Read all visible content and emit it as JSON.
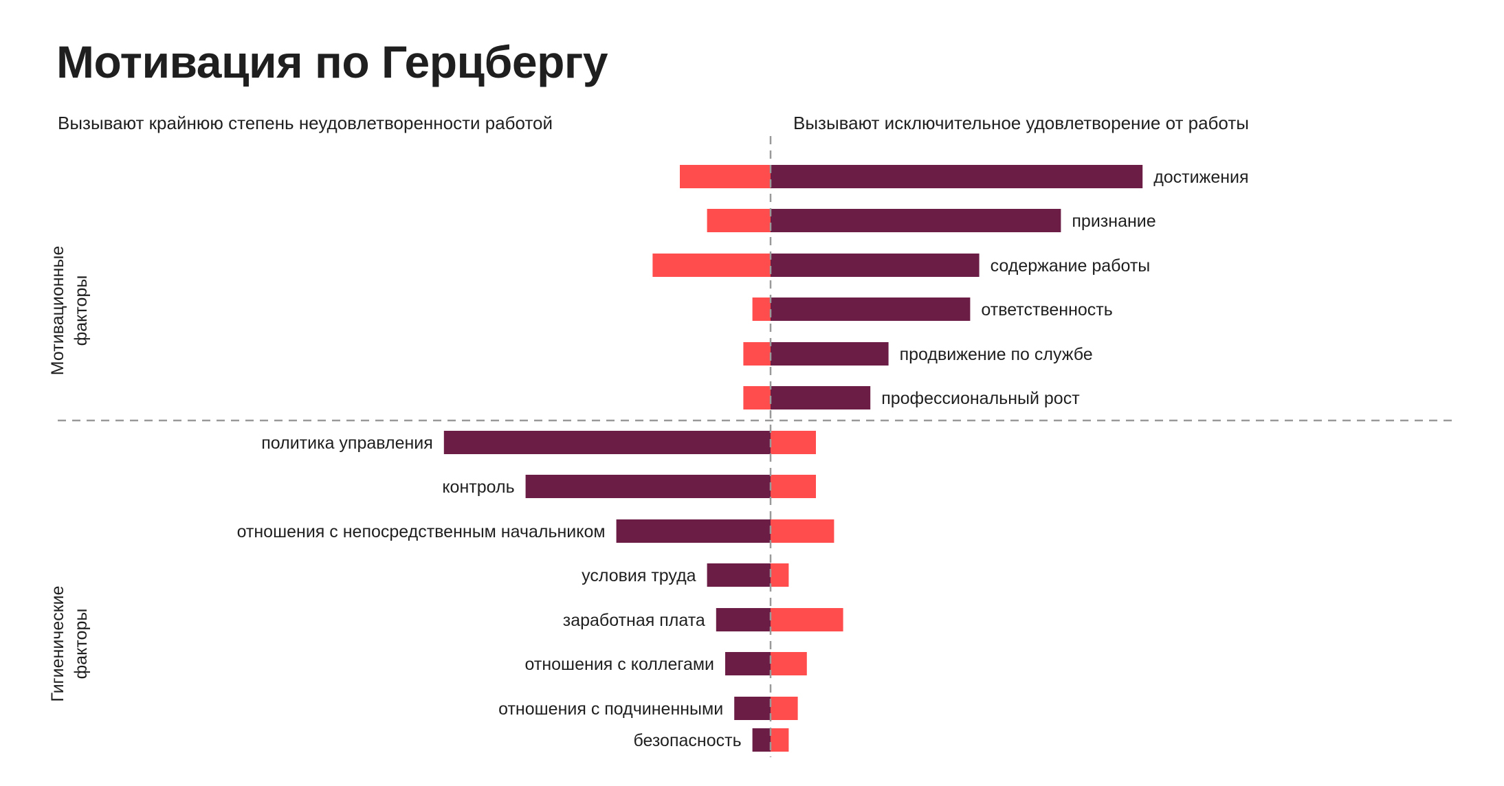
{
  "chart_data": {
    "type": "bar",
    "orientation": "horizontal-diverging",
    "title": "Мотивация по Герцбергу",
    "left_header": "Вызывают крайнюю степень неудовлетворенности работой",
    "right_header": "Вызывают исключительное удовлетворение от работы",
    "colors": {
      "primary": "#6B1D45",
      "secondary": "#FF4D4D",
      "divider": "#999999"
    },
    "groups": [
      {
        "name": "Мотивационные факторы",
        "name_lines": [
          "Мотивационные",
          "факторы"
        ],
        "label_side": "right",
        "items": [
          {
            "label": "достижения",
            "dissatisfaction": 10,
            "satisfaction": 41
          },
          {
            "label": "признание",
            "dissatisfaction": 7,
            "satisfaction": 32
          },
          {
            "label": "содержание работы",
            "dissatisfaction": 13,
            "satisfaction": 23
          },
          {
            "label": "ответственность",
            "dissatisfaction": 2,
            "satisfaction": 22
          },
          {
            "label": "продвижение по службе",
            "dissatisfaction": 3,
            "satisfaction": 13
          },
          {
            "label": "профессиональный рост",
            "dissatisfaction": 3,
            "satisfaction": 11
          }
        ]
      },
      {
        "name": "Гигиенические факторы",
        "name_lines": [
          "Гигиенические",
          "факторы"
        ],
        "label_side": "left",
        "items": [
          {
            "label": "политика управления",
            "dissatisfaction": 36,
            "satisfaction": 5
          },
          {
            "label": "контроль",
            "dissatisfaction": 27,
            "satisfaction": 5
          },
          {
            "label": "отношения с непосредственным начальником",
            "dissatisfaction": 17,
            "satisfaction": 7
          },
          {
            "label": "условия труда",
            "dissatisfaction": 7,
            "satisfaction": 2
          },
          {
            "label": "заработная плата",
            "dissatisfaction": 6,
            "satisfaction": 8
          },
          {
            "label": "отношения с коллегами",
            "dissatisfaction": 5,
            "satisfaction": 4
          },
          {
            "label": "отношения с подчиненными",
            "dissatisfaction": 4,
            "satisfaction": 3
          },
          {
            "label": "безопасность",
            "dissatisfaction": 2,
            "satisfaction": 2
          }
        ]
      }
    ]
  }
}
